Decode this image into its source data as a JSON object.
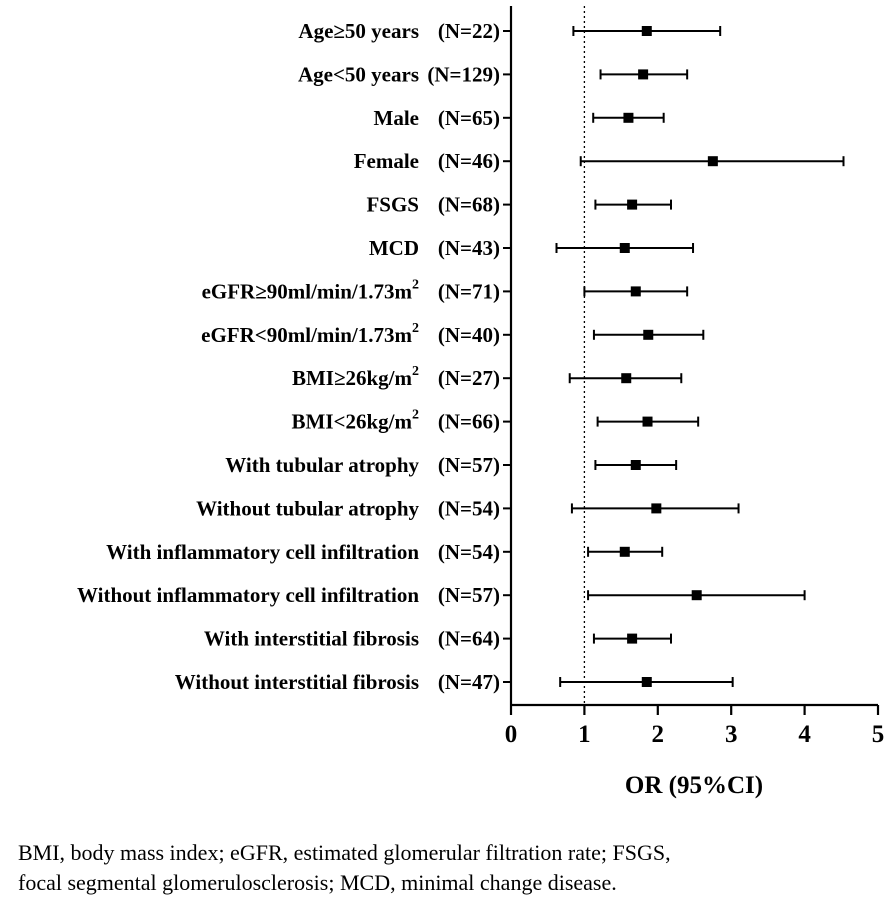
{
  "chart_data": {
    "type": "forest",
    "xlabel": "OR (95%CI)",
    "xlim": [
      0,
      5
    ],
    "xticks": [
      0,
      1,
      2,
      3,
      4,
      5
    ],
    "reference_line": 1,
    "rows": [
      {
        "label": "Age≥50 years",
        "n": "(N=22)",
        "or": 1.85,
        "lo": 0.85,
        "hi": 2.85
      },
      {
        "label": "Age<50 years",
        "n": "(N=129)",
        "or": 1.8,
        "lo": 1.22,
        "hi": 2.4
      },
      {
        "label": "Male",
        "n": "(N=65)",
        "or": 1.6,
        "lo": 1.12,
        "hi": 2.08
      },
      {
        "label": "Female",
        "n": "(N=46)",
        "or": 2.75,
        "lo": 0.95,
        "hi": 4.53
      },
      {
        "label": "FSGS",
        "n": "(N=68)",
        "or": 1.65,
        "lo": 1.15,
        "hi": 2.18
      },
      {
        "label": "MCD",
        "n": "(N=43)",
        "or": 1.55,
        "lo": 0.62,
        "hi": 2.48
      },
      {
        "label": "eGFR≥90ml/min/1.73m",
        "sup": "2",
        "n": "(N=71)",
        "or": 1.7,
        "lo": 1.0,
        "hi": 2.4
      },
      {
        "label": "eGFR<90ml/min/1.73m",
        "sup": "2",
        "n": "(N=40)",
        "or": 1.87,
        "lo": 1.13,
        "hi": 2.62
      },
      {
        "label": "BMI≥26kg/m",
        "sup": "2",
        "n": "(N=27)",
        "or": 1.57,
        "lo": 0.8,
        "hi": 2.32
      },
      {
        "label": "BMI<26kg/m",
        "sup": "2",
        "n": "(N=66)",
        "or": 1.86,
        "lo": 1.18,
        "hi": 2.55
      },
      {
        "label": "With tubular atrophy",
        "n": "(N=57)",
        "or": 1.7,
        "lo": 1.15,
        "hi": 2.25
      },
      {
        "label": "Without tubular atrophy ",
        "n": "(N=54)",
        "or": 1.98,
        "lo": 0.83,
        "hi": 3.1
      },
      {
        "label": "With inflammatory cell infiltration",
        "n": "(N=54)",
        "or": 1.55,
        "lo": 1.05,
        "hi": 2.06
      },
      {
        "label": "Without inflammatory cell infiltration",
        "n": "(N=57)",
        "or": 2.53,
        "lo": 1.05,
        "hi": 4.0
      },
      {
        "label": "With interstitial fibrosis ",
        "n": "(N=64)",
        "or": 1.65,
        "lo": 1.13,
        "hi": 2.18
      },
      {
        "label": "Without interstitial fibrosis",
        "n": "(N=47)",
        "or": 1.85,
        "lo": 0.67,
        "hi": 3.02
      }
    ]
  },
  "footnote": {
    "line1": "BMI, body mass index; eGFR, estimated glomerular filtration rate; FSGS,",
    "line2": "focal segmental glomerulosclerosis; MCD, minimal change disease."
  }
}
